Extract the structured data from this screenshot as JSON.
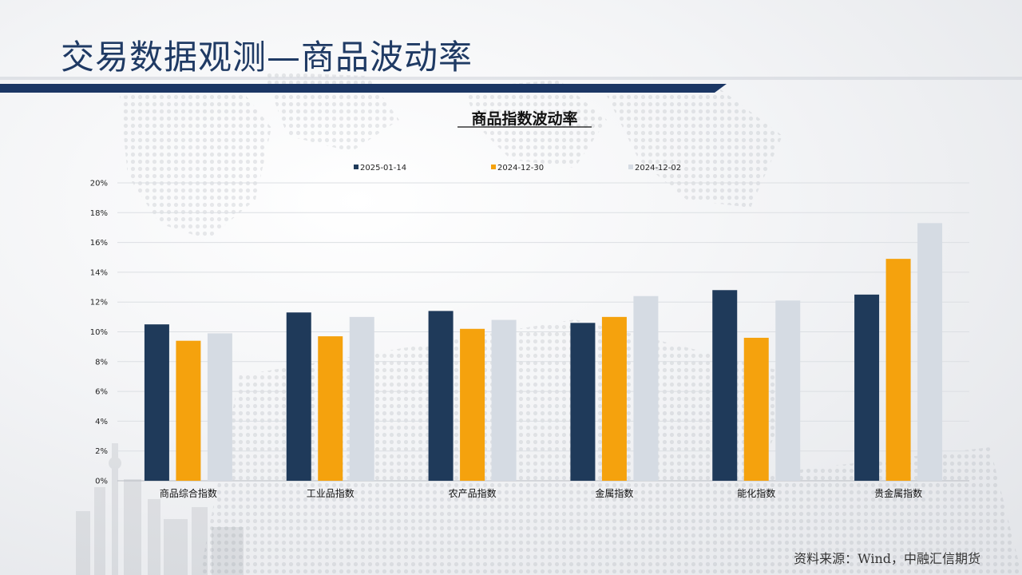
{
  "page": {
    "title": "交易数据观测—商品波动率",
    "source": "资料来源：Wind，中融汇信期货"
  },
  "colors": {
    "title": "#1f3a64",
    "header_bar": "#1b3664",
    "series": [
      "#1f3a5a",
      "#f5a20d",
      "#d5dbe3"
    ]
  },
  "chart_data": {
    "type": "bar",
    "title": "商品指数波动率",
    "categories": [
      "商品综合指数",
      "工业品指数",
      "农产品指数",
      "金属指数",
      "能化指数",
      "贵金属指数"
    ],
    "series": [
      {
        "name": "2025-01-14",
        "values": [
          10.5,
          11.3,
          11.4,
          10.6,
          12.8,
          12.5
        ]
      },
      {
        "name": "2024-12-30",
        "values": [
          9.4,
          9.7,
          10.2,
          11.0,
          9.6,
          14.9
        ]
      },
      {
        "name": "2024-12-02",
        "values": [
          9.9,
          11.0,
          10.8,
          12.4,
          12.1,
          17.3
        ]
      }
    ],
    "ylim": [
      0,
      20
    ],
    "yticks": [
      "0%",
      "2%",
      "4%",
      "6%",
      "8%",
      "10%",
      "12%",
      "14%",
      "16%",
      "18%",
      "20%"
    ],
    "grid": true,
    "legend": "top-center"
  }
}
